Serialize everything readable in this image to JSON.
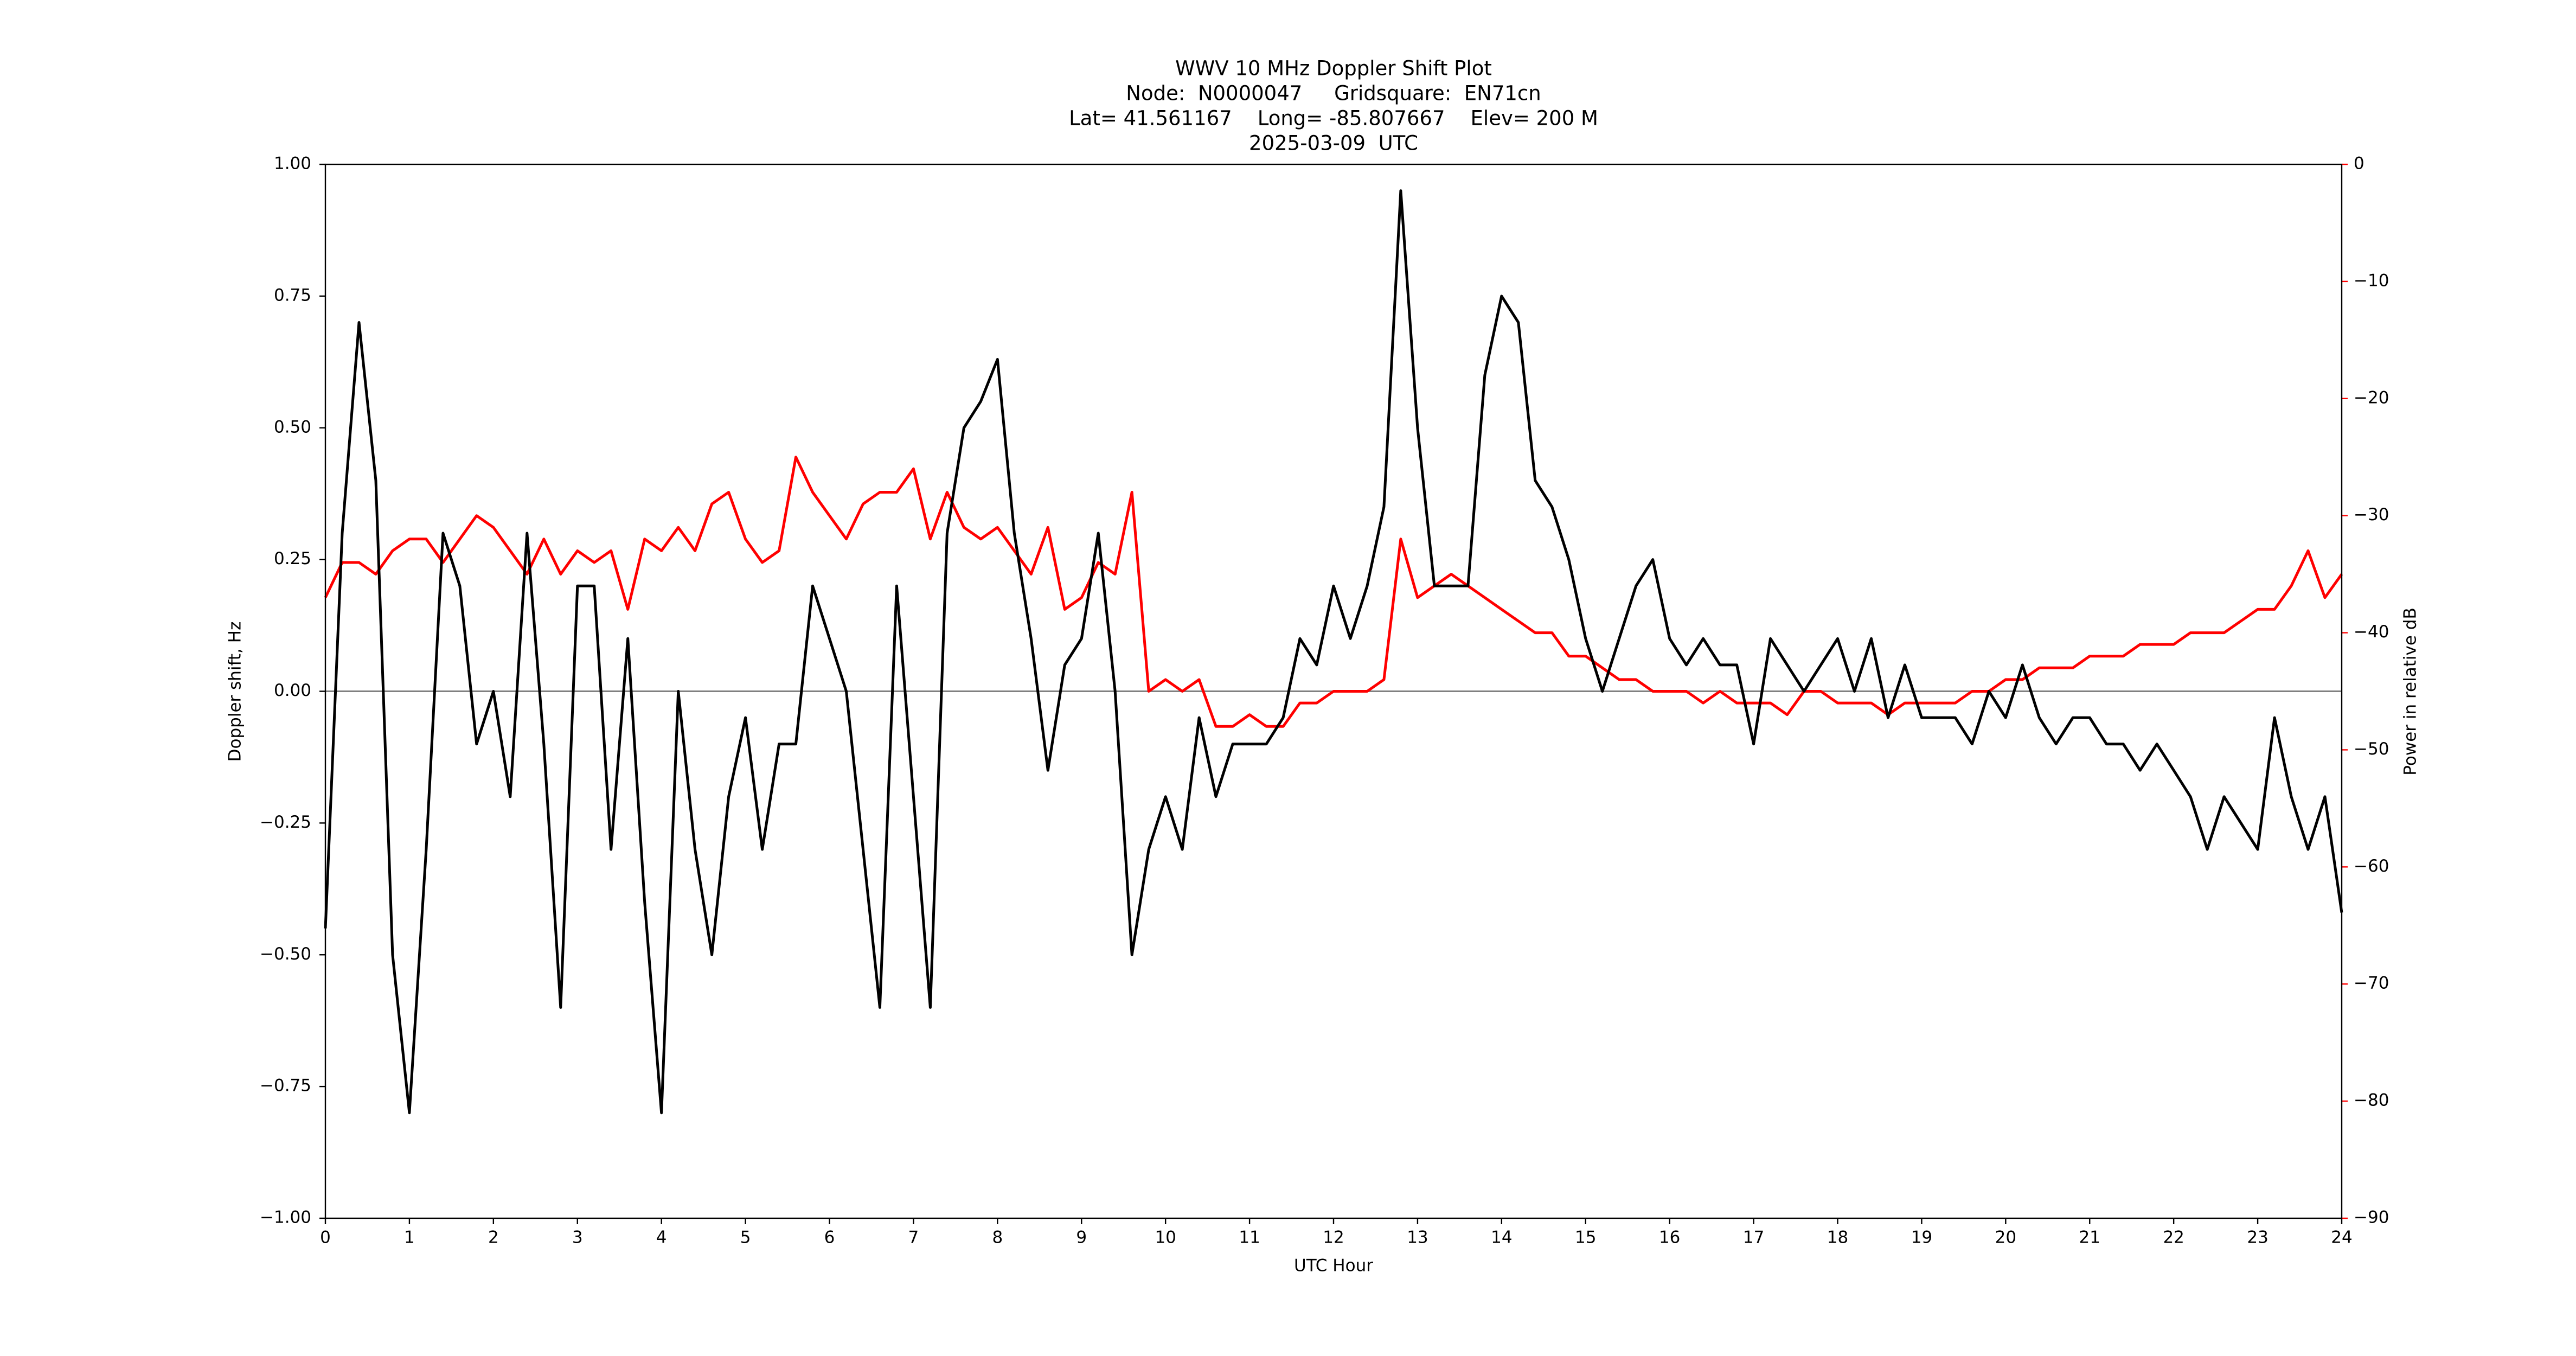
{
  "chart_data": {
    "type": "line",
    "title": "WWV 10 MHz Doppler Shift Plot",
    "subtitle": [
      "Node:  N0000047     Gridsquare:  EN71cn",
      "Lat= 41.561167    Long= -85.807667    Elev= 200 M",
      "2025-03-09  UTC"
    ],
    "x_label": "UTC Hour",
    "y_label": "Doppler shift, Hz",
    "y2_label": "Power in relative dB",
    "y2_color": "red",
    "xlim": [
      0,
      24
    ],
    "xticks": [
      0,
      1,
      2,
      3,
      4,
      5,
      6,
      7,
      8,
      9,
      10,
      11,
      12,
      13,
      14,
      15,
      16,
      17,
      18,
      19,
      20,
      21,
      22,
      23,
      24
    ],
    "ylim": [
      -1,
      1
    ],
    "yticks": [
      {
        "value": -1,
        "label": "−1.00"
      },
      {
        "value": -0.75,
        "label": "−0.75"
      },
      {
        "value": -0.5,
        "label": "−0.50"
      },
      {
        "value": -0.25,
        "label": "−0.25"
      },
      {
        "value": 0,
        "label": "0.00"
      },
      {
        "value": 0.25,
        "label": "0.25"
      },
      {
        "value": 0.5,
        "label": "0.50"
      },
      {
        "value": 0.75,
        "label": "0.75"
      },
      {
        "value": 1,
        "label": "1.00"
      }
    ],
    "y2lim": [
      -90,
      0
    ],
    "y2ticks": [
      {
        "value": -90,
        "label": "−90"
      },
      {
        "value": -80,
        "label": "−80"
      },
      {
        "value": -70,
        "label": "−70"
      },
      {
        "value": -60,
        "label": "−60"
      },
      {
        "value": -50,
        "label": "−50"
      },
      {
        "value": -40,
        "label": "−40"
      },
      {
        "value": -30,
        "label": "−30"
      },
      {
        "value": -20,
        "label": "−20"
      },
      {
        "value": -10,
        "label": "−10"
      },
      0
    ],
    "x": [
      0,
      0.2,
      0.4,
      0.6,
      0.8,
      1,
      1.2,
      1.4,
      1.6,
      1.8,
      2,
      2.2,
      2.4,
      2.6,
      2.8,
      3,
      3.2,
      3.4,
      3.6,
      3.8,
      4,
      4.2,
      4.4,
      4.6,
      4.8,
      5,
      5.2,
      5.4,
      5.6,
      5.8,
      6,
      6.2,
      6.4,
      6.6,
      6.8,
      7,
      7.2,
      7.4,
      7.6,
      7.8,
      8,
      8.2,
      8.4,
      8.6,
      8.8,
      9,
      9.2,
      9.4,
      9.6,
      9.8,
      10,
      10.2,
      10.4,
      10.6,
      10.8,
      11,
      11.2,
      11.4,
      11.6,
      11.8,
      12,
      12.2,
      12.4,
      12.6,
      12.8,
      13,
      13.2,
      13.4,
      13.6,
      13.8,
      14,
      14.2,
      14.4,
      14.6,
      14.8,
      15,
      15.2,
      15.4,
      15.6,
      15.8,
      16,
      16.2,
      16.4,
      16.6,
      16.8,
      17,
      17.2,
      17.4,
      17.6,
      17.8,
      18,
      18.2,
      18.4,
      18.6,
      18.8,
      19,
      19.2,
      19.4,
      19.6,
      19.8,
      20,
      20.2,
      20.4,
      20.6,
      20.8,
      21,
      21.2,
      21.4,
      21.6,
      21.8,
      22,
      22.2,
      22.4,
      22.6,
      22.8,
      23,
      23.2,
      23.4,
      23.6,
      23.8,
      24
    ],
    "series": [
      {
        "color": "#000000",
        "values": [
          -0.45,
          0.3,
          0.7,
          0.4,
          -0.5,
          -0.8,
          -0.3,
          0.3,
          0.2,
          -0.1,
          0.0,
          -0.2,
          0.3,
          -0.1,
          -0.6,
          0.2,
          0.2,
          -0.3,
          0.1,
          -0.4,
          -0.8,
          0.0,
          -0.3,
          -0.5,
          -0.2,
          -0.05,
          -0.3,
          -0.1,
          -0.1,
          0.2,
          0.1,
          0.0,
          -0.3,
          -0.6,
          0.2,
          -0.2,
          -0.6,
          0.3,
          0.5,
          0.55,
          0.63,
          0.3,
          0.1,
          -0.15,
          0.05,
          0.1,
          0.3,
          0.0,
          -0.5,
          -0.3,
          -0.2,
          -0.3,
          -0.05,
          -0.2,
          -0.1,
          -0.1,
          -0.1,
          -0.05,
          0.1,
          0.05,
          0.2,
          0.1,
          0.2,
          0.35,
          0.95,
          0.5,
          0.2,
          0.2,
          0.2,
          0.6,
          0.75,
          0.7,
          0.4,
          0.35,
          0.25,
          0.1,
          0.0,
          0.1,
          0.2,
          0.25,
          0.1,
          0.05,
          0.1,
          0.05,
          0.05,
          -0.1,
          0.1,
          0.05,
          0.0,
          0.05,
          0.1,
          0.0,
          0.1,
          -0.05,
          0.05,
          -0.05,
          -0.05,
          -0.05,
          -0.1,
          0.0,
          -0.05,
          0.05,
          -0.05,
          -0.1,
          -0.05,
          -0.05,
          -0.1,
          -0.1,
          -0.15,
          -0.1,
          -0.15,
          -0.2,
          -0.3,
          -0.2,
          -0.25,
          -0.3,
          -0.05,
          -0.2,
          -0.3,
          -0.2,
          -0.42
        ]
      },
      {
        "color": "#ff0000",
        "axis": "y2",
        "values": [
          -37,
          -34,
          -34,
          -35,
          -33,
          -32,
          -32,
          -34,
          -32,
          -30,
          -31,
          -33,
          -35,
          -32,
          -35,
          -33,
          -34,
          -33,
          -38,
          -32,
          -33,
          -31,
          -33,
          -29,
          -28,
          -32,
          -34,
          -33,
          -25,
          -28,
          -30,
          -32,
          -29,
          -28,
          -28,
          -26,
          -32,
          -28,
          -31,
          -32,
          -31,
          -33,
          -35,
          -31,
          -38,
          -37,
          -34,
          -35,
          -28,
          -45,
          -44,
          -45,
          -44,
          -48,
          -48,
          -47,
          -48,
          -48,
          -46,
          -46,
          -45,
          -45,
          -45,
          -44,
          -32,
          -37,
          -36,
          -35,
          -36,
          -37,
          -38,
          -39,
          -40,
          -40,
          -42,
          -42,
          -43,
          -44,
          -44,
          -45,
          -45,
          -45,
          -46,
          -45,
          -46,
          -46,
          -46,
          -47,
          -45,
          -45,
          -46,
          -46,
          -46,
          -47,
          -46,
          -46,
          -46,
          -46,
          -45,
          -45,
          -44,
          -44,
          -43,
          -43,
          -43,
          -42,
          -42,
          -42,
          -41,
          -41,
          -41,
          -40,
          -40,
          -40,
          -39,
          -38,
          -38,
          -36,
          -33,
          -37,
          -35
        ]
      }
    ]
  }
}
